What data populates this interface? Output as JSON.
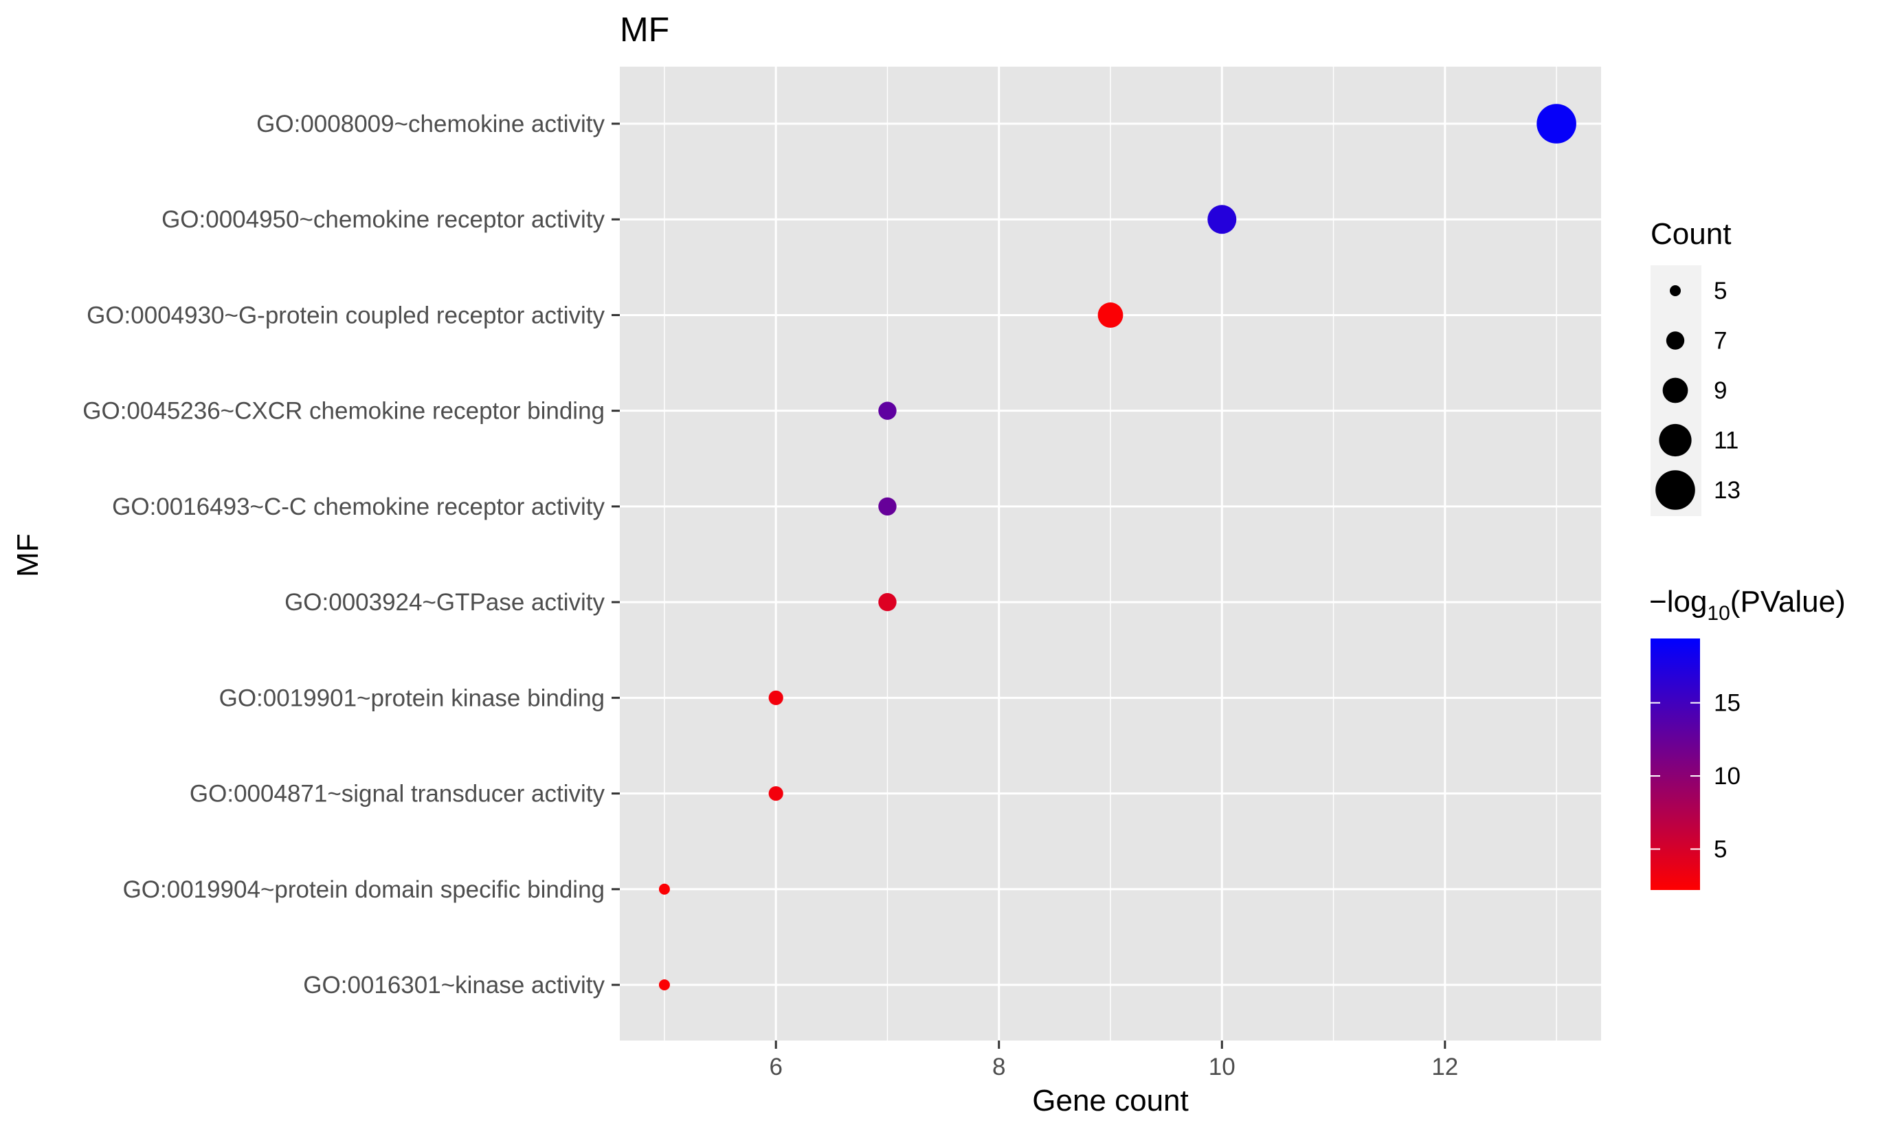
{
  "chart_data": {
    "type": "scatter",
    "title": "MF",
    "xlabel": "Gene count",
    "ylabel": "MF",
    "xlim": [
      4.6,
      13.4
    ],
    "x_ticks": [
      6,
      8,
      10,
      12
    ],
    "x_minor_ticks": [
      5,
      7,
      9,
      11,
      13
    ],
    "grid": true,
    "categories": [
      "GO:0008009~chemokine activity",
      "GO:0004950~chemokine receptor activity",
      "GO:0004930~G-protein coupled receptor activity",
      "GO:0045236~CXCR chemokine receptor binding",
      "GO:0016493~C-C chemokine receptor activity",
      "GO:0003924~GTPase activity",
      "GO:0019901~protein kinase binding",
      "GO:0004871~signal transducer activity",
      "GO:0019904~protein domain specific binding",
      "GO:0016301~kinase activity"
    ],
    "points": [
      {
        "term": "GO:0008009~chemokine activity",
        "count": 13,
        "neg_log10_p": 19.0
      },
      {
        "term": "GO:0004950~chemokine receptor activity",
        "count": 10,
        "neg_log10_p": 17.0
      },
      {
        "term": "GO:0004930~G-protein coupled receptor activity",
        "count": 9,
        "neg_log10_p": 2.5
      },
      {
        "term": "GO:0045236~CXCR chemokine receptor binding",
        "count": 7,
        "neg_log10_p": 13.0
      },
      {
        "term": "GO:0016493~C-C chemokine receptor activity",
        "count": 7,
        "neg_log10_p": 12.5
      },
      {
        "term": "GO:0003924~GTPase activity",
        "count": 7,
        "neg_log10_p": 4.5
      },
      {
        "term": "GO:0019901~protein kinase binding",
        "count": 6,
        "neg_log10_p": 3.0
      },
      {
        "term": "GO:0004871~signal transducer activity",
        "count": 6,
        "neg_log10_p": 3.0
      },
      {
        "term": "GO:0019904~protein domain specific binding",
        "count": 5,
        "neg_log10_p": 2.5
      },
      {
        "term": "GO:0016301~kinase activity",
        "count": 5,
        "neg_log10_p": 2.5
      }
    ],
    "size_legend": {
      "title": "Count",
      "values": [
        5,
        7,
        9,
        11,
        13
      ]
    },
    "color_legend": {
      "title_prefix": "−log",
      "title_sub": "10",
      "title_suffix": "(PValue)",
      "range": [
        2.2,
        19.4
      ],
      "ticks": [
        5,
        10,
        15
      ],
      "low_color": "#FF0000",
      "high_color": "#0000FF",
      "legend_position": "right"
    },
    "colors": {
      "panel_background": "#E5E5E5",
      "grid": "#FFFFFF",
      "text": "#000000",
      "axis_text": "#4D4D4D"
    }
  }
}
